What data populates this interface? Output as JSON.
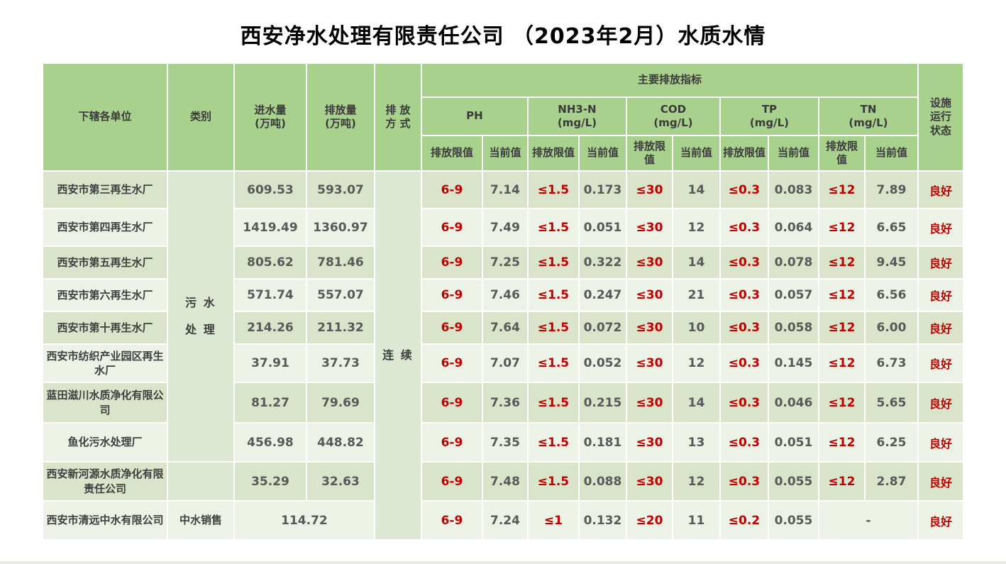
{
  "title": "西安净水处理有限责任公司 （2023年2月）水质水情",
  "colors": {
    "header_green": "#A9D18E",
    "row_dark": "#D9E4CB",
    "row_light": "#EDF2E7",
    "merged_green": "#DCE8D1",
    "limit_red": "#C00000",
    "value_gray": "#595959",
    "label_dark": "#3F3F3F"
  },
  "table": {
    "headers": {
      "unit": "下辖各单位",
      "category": "类别",
      "inflow": "进水量\n(万吨)",
      "outflow": "排放量\n(万吨)",
      "discharge_mode": "排 放\n方 式",
      "main_indicators": "主要排放指标",
      "facility_status": "设施\n运行\n状态",
      "limit_label": "排放限值",
      "current_label": "当前值",
      "groups": [
        {
          "label": "PH"
        },
        {
          "label": "NH3-N\n(mg/L)"
        },
        {
          "label": "COD\n(mg/L)"
        },
        {
          "label": "TP\n(mg/L)"
        },
        {
          "label": "TN\n(mg/L)"
        }
      ]
    },
    "merged": {
      "category_sewage": "污 水\n处 理",
      "discharge_mode": "连 续"
    },
    "rows": [
      {
        "unit": "西安市第三再生水厂",
        "inflow": "609.53",
        "outflow": "593.07",
        "values": [
          [
            "6-9",
            "7.14"
          ],
          [
            "≤1.5",
            "0.173"
          ],
          [
            "≤30",
            "14"
          ],
          [
            "≤0.3",
            "0.083"
          ],
          [
            "≤12",
            "7.89"
          ]
        ],
        "status": "良好"
      },
      {
        "unit": "西安市第四再生水厂",
        "inflow": "1419.49",
        "outflow": "1360.97",
        "values": [
          [
            "6-9",
            "7.49"
          ],
          [
            "≤1.5",
            "0.051"
          ],
          [
            "≤30",
            "12"
          ],
          [
            "≤0.3",
            "0.064"
          ],
          [
            "≤12",
            "6.65"
          ]
        ],
        "status": "良好"
      },
      {
        "unit": "西安市第五再生水厂",
        "inflow": "805.62",
        "outflow": "781.46",
        "values": [
          [
            "6-9",
            "7.25"
          ],
          [
            "≤1.5",
            "0.322"
          ],
          [
            "≤30",
            "14"
          ],
          [
            "≤0.3",
            "0.078"
          ],
          [
            "≤12",
            "9.45"
          ]
        ],
        "status": "良好"
      },
      {
        "unit": "西安市第六再生水厂",
        "inflow": "571.74",
        "outflow": "557.07",
        "values": [
          [
            "6-9",
            "7.46"
          ],
          [
            "≤1.5",
            "0.247"
          ],
          [
            "≤30",
            "21"
          ],
          [
            "≤0.3",
            "0.057"
          ],
          [
            "≤12",
            "6.56"
          ]
        ],
        "status": "良好"
      },
      {
        "unit": "西安市第十再生水厂",
        "inflow": "214.26",
        "outflow": "211.32",
        "values": [
          [
            "6-9",
            "7.64"
          ],
          [
            "≤1.5",
            "0.072"
          ],
          [
            "≤30",
            "10"
          ],
          [
            "≤0.3",
            "0.058"
          ],
          [
            "≤12",
            "6.00"
          ]
        ],
        "status": "良好"
      },
      {
        "unit": "西安市纺织产业园区再生水厂",
        "inflow": "37.91",
        "outflow": "37.73",
        "values": [
          [
            "6-9",
            "7.07"
          ],
          [
            "≤1.5",
            "0.052"
          ],
          [
            "≤30",
            "12"
          ],
          [
            "≤0.3",
            "0.145"
          ],
          [
            "≤12",
            "6.73"
          ]
        ],
        "status": "良好"
      },
      {
        "unit": "蓝田滋川水质净化有限公司",
        "inflow": "81.27",
        "outflow": "79.69",
        "values": [
          [
            "6-9",
            "7.36"
          ],
          [
            "≤1.5",
            "0.215"
          ],
          [
            "≤30",
            "14"
          ],
          [
            "≤0.3",
            "0.046"
          ],
          [
            "≤12",
            "5.65"
          ]
        ],
        "status": "良好"
      },
      {
        "unit": "鱼化污水处理厂",
        "inflow": "456.98",
        "outflow": "448.82",
        "values": [
          [
            "6-9",
            "7.35"
          ],
          [
            "≤1.5",
            "0.181"
          ],
          [
            "≤30",
            "13"
          ],
          [
            "≤0.3",
            "0.051"
          ],
          [
            "≤12",
            "6.25"
          ]
        ],
        "status": "良好"
      },
      {
        "unit": "西安新河源水质净化有限责任公司",
        "inflow": "35.29",
        "outflow": "32.63",
        "values": [
          [
            "6-9",
            "7.48"
          ],
          [
            "≤1.5",
            "0.088"
          ],
          [
            "≤30",
            "12"
          ],
          [
            "≤0.3",
            "0.055"
          ],
          [
            "≤12",
            "2.87"
          ]
        ],
        "status": "良好"
      },
      {
        "unit": "西安市清远中水有限公司",
        "category": "中水销售",
        "volume": "114.72",
        "values": [
          [
            "6-9",
            "7.24"
          ],
          [
            "≤1",
            "0.132"
          ],
          [
            "≤20",
            "11"
          ],
          [
            "≤0.2",
            "0.055"
          ]
        ],
        "tn_merged": "-",
        "status": "良好"
      }
    ]
  }
}
